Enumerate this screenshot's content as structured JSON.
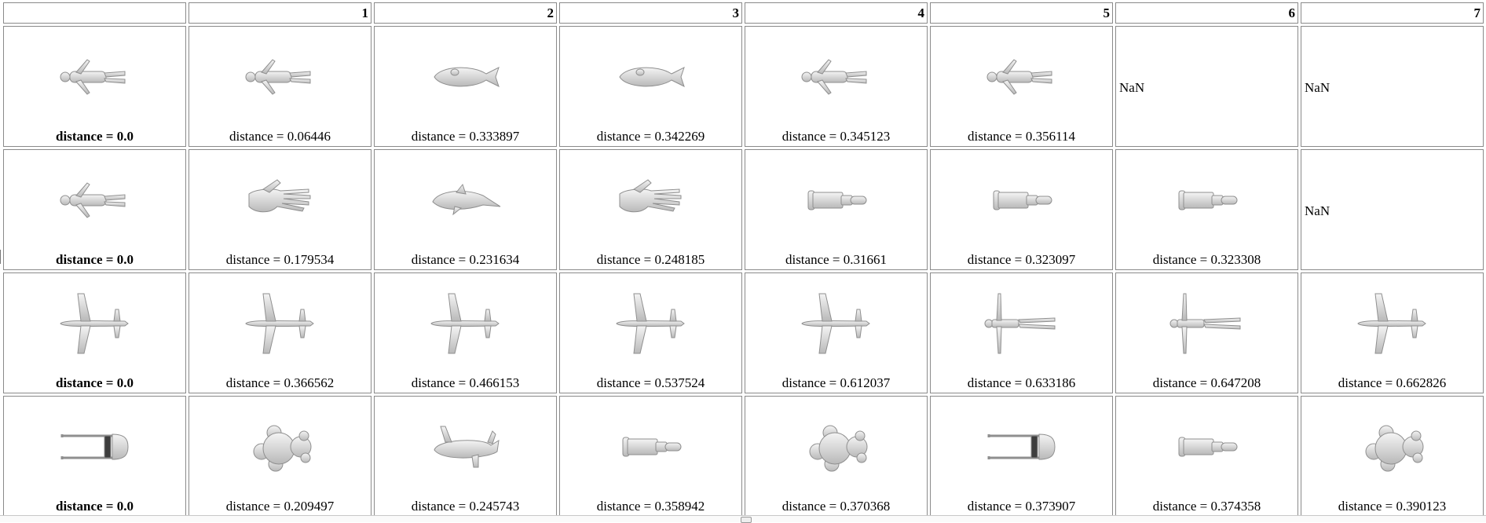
{
  "header": {
    "corner_label": "",
    "columns": [
      "1",
      "2",
      "3",
      "4",
      "5",
      "6",
      "7"
    ]
  },
  "rows": [
    {
      "query": {
        "shape": "human",
        "label": "distance = 0.0"
      },
      "results": [
        {
          "shape": "human",
          "label": "distance = 0.06446"
        },
        {
          "shape": "fish",
          "label": "distance = 0.333897"
        },
        {
          "shape": "fish",
          "label": "distance = 0.342269"
        },
        {
          "shape": "human",
          "label": "distance = 0.345123"
        },
        {
          "shape": "human",
          "label": "distance = 0.356114"
        },
        {
          "shape": "nan",
          "label": "NaN"
        },
        {
          "shape": "nan",
          "label": "NaN"
        }
      ]
    },
    {
      "query": {
        "shape": "human",
        "label": "distance = 0.0"
      },
      "results": [
        {
          "shape": "hand",
          "label": "distance = 0.179534"
        },
        {
          "shape": "dolphin",
          "label": "distance = 0.231634"
        },
        {
          "shape": "hand",
          "label": "distance = 0.248185"
        },
        {
          "shape": "cylinder",
          "label": "distance = 0.31661"
        },
        {
          "shape": "cylinder",
          "label": "distance = 0.323097"
        },
        {
          "shape": "cylinder",
          "label": "distance = 0.323308"
        },
        {
          "shape": "nan",
          "label": "NaN"
        }
      ]
    },
    {
      "query": {
        "shape": "airplane",
        "label": "distance = 0.0"
      },
      "results": [
        {
          "shape": "airplane",
          "label": "distance = 0.366562"
        },
        {
          "shape": "airplane",
          "label": "distance = 0.466153"
        },
        {
          "shape": "airplane",
          "label": "distance = 0.537524"
        },
        {
          "shape": "airplane",
          "label": "distance = 0.612037"
        },
        {
          "shape": "figure",
          "label": "distance = 0.633186"
        },
        {
          "shape": "figure",
          "label": "distance = 0.647208"
        },
        {
          "shape": "airplane",
          "label": "distance = 0.662826"
        }
      ]
    },
    {
      "query": {
        "shape": "chair",
        "label": "distance = 0.0"
      },
      "results": [
        {
          "shape": "teddy",
          "label": "distance = 0.209497"
        },
        {
          "shape": "animal",
          "label": "distance = 0.245743"
        },
        {
          "shape": "cylinder",
          "label": "distance = 0.358942"
        },
        {
          "shape": "teddy",
          "label": "distance = 0.370368"
        },
        {
          "shape": "chair",
          "label": "distance = 0.373907"
        },
        {
          "shape": "cylinder",
          "label": "distance = 0.374358"
        },
        {
          "shape": "teddy",
          "label": "distance = 0.390123"
        }
      ]
    }
  ]
}
